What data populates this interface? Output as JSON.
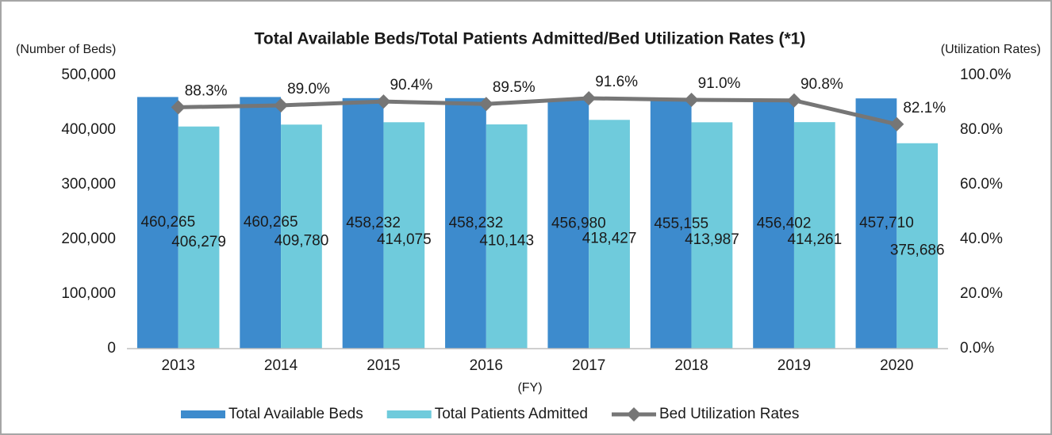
{
  "chart_data": {
    "type": "bar-line",
    "title": "Total Available Beds/Total Patients Admitted/Bed Utilization Rates (*1)",
    "ylabel": "(Number of Beds)",
    "y2label": "(Utilization Rates)",
    "xlabel": "(FY)",
    "categories": [
      "2013",
      "2014",
      "2015",
      "2016",
      "2017",
      "2018",
      "2019",
      "2020"
    ],
    "series": [
      {
        "name": "Total Available Beds",
        "type": "bar",
        "color": "#3d8bcd",
        "values": [
          460265,
          460265,
          458232,
          458232,
          456980,
          455155,
          456402,
          457710
        ],
        "value_labels": [
          "460,265",
          "460,265",
          "458,232",
          "458,232",
          "456,980",
          "455,155",
          "456,402",
          "457,710"
        ]
      },
      {
        "name": "Total Patients Admitted",
        "type": "bar",
        "color": "#6fcbdc",
        "values": [
          406279,
          409780,
          414075,
          410143,
          418427,
          413987,
          414261,
          375686
        ],
        "value_labels": [
          "406,279",
          "409,780",
          "414,075",
          "410,143",
          "418,427",
          "413,987",
          "414,261",
          "375,686"
        ]
      },
      {
        "name": "Bed Utilization Rates",
        "type": "line",
        "axis": "y2",
        "color": "#767676",
        "values": [
          88.3,
          89.0,
          90.4,
          89.5,
          91.6,
          91.0,
          90.8,
          82.1
        ],
        "value_labels": [
          "88.3%",
          "89.0%",
          "90.4%",
          "89.5%",
          "91.6%",
          "91.0%",
          "90.8%",
          "82.1%"
        ]
      }
    ],
    "ylim": [
      0,
      500000
    ],
    "yticks": [
      0,
      {
        "value": 100000,
        "label": "100,000"
      },
      {
        "value": 200000,
        "label": "200,000"
      },
      {
        "value": 300000,
        "label": "300,000"
      },
      {
        "value": 400000,
        "label": "400,000"
      },
      {
        "value": 500000,
        "label": "500,000"
      }
    ],
    "y2lim": [
      0,
      100
    ],
    "y2ticks": [
      {
        "value": 0,
        "label": "0.0%"
      },
      {
        "value": 20,
        "label": "20.0%"
      },
      {
        "value": 40,
        "label": "40.0%"
      },
      {
        "value": 60,
        "label": "60.0%"
      },
      {
        "value": 80,
        "label": "80.0%"
      },
      {
        "value": 100,
        "label": "100.0%"
      }
    ],
    "grid": false,
    "legend": "bottom"
  }
}
